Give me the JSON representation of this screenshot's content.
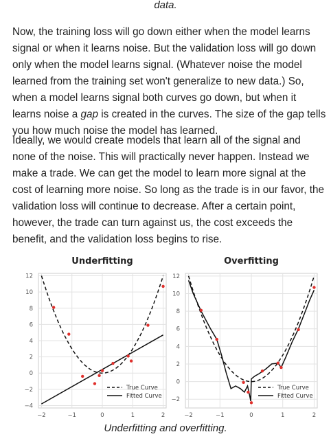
{
  "text": {
    "top_fragment": "data.",
    "paragraph1_a": "Now, the training loss will go down either when the model learns signal or when it learns noise. But the validation loss will go down only when the model learns signal. (Whatever noise the model learned from the training set won't generalize to new data.) So, when a model learns signal both curves go down, but when it learns noise a ",
    "paragraph1_em": "gap",
    "paragraph1_b": " is created in the curves. The size of the gap tells you how much noise the model has learned.",
    "paragraph2": "Ideally, we would create models that learn all of the signal and none of the noise. This will practically never happen. Instead we make a trade. We can get the model to learn more signal at the cost of learning more noise. So long as the trade is in our favor, the validation loss will continue to decrease. After a certain point, however, the trade can turn against us, the cost exceeds the benefit, and the validation loss begins to rise.",
    "caption": "Underfitting and overfitting."
  },
  "chart_data": [
    {
      "type": "line",
      "title": "Underfitting",
      "xlim": [
        -2.1,
        2.1
      ],
      "ylim": [
        -4.3,
        12.3
      ],
      "xticks": [
        -2,
        -1,
        0,
        1,
        2
      ],
      "yticks": [
        -4,
        -2,
        0,
        2,
        4,
        6,
        8,
        10,
        12
      ],
      "grid": true,
      "legend_position": "bottom-right",
      "series": [
        {
          "name": "True Curve",
          "style": "dashed",
          "x": [
            -2.0,
            -1.5,
            -1.0,
            -0.5,
            0.0,
            0.5,
            1.0,
            1.5,
            2.0
          ],
          "y": [
            12.0,
            6.75,
            3.0,
            0.75,
            0.0,
            0.75,
            3.0,
            6.75,
            12.0
          ]
        },
        {
          "name": "Fitted Curve",
          "style": "solid",
          "x": [
            -2.0,
            2.0
          ],
          "y": [
            -3.8,
            4.7
          ]
        }
      ],
      "points": {
        "x": [
          -1.6,
          -1.1,
          -0.65,
          -0.25,
          -0.1,
          0.0,
          0.35,
          0.85,
          0.95,
          1.5,
          2.0
        ],
        "y": [
          8.1,
          4.8,
          -0.4,
          -1.3,
          -0.3,
          0.3,
          1.2,
          2.1,
          1.5,
          5.9,
          10.7
        ]
      }
    },
    {
      "type": "line",
      "title": "Overfitting",
      "xlim": [
        -2.1,
        2.1
      ],
      "ylim": [
        -3.0,
        12.3
      ],
      "xticks": [
        -2,
        -1,
        0,
        1,
        2
      ],
      "yticks": [
        -2,
        0,
        2,
        4,
        6,
        8,
        10,
        12
      ],
      "grid": true,
      "legend_position": "bottom-right",
      "series": [
        {
          "name": "True Curve",
          "style": "dashed",
          "x": [
            -2.0,
            -1.5,
            -1.0,
            -0.5,
            0.0,
            0.5,
            1.0,
            1.5,
            2.0
          ],
          "y": [
            12.0,
            6.75,
            3.0,
            0.75,
            0.0,
            0.75,
            3.0,
            6.75,
            12.0
          ]
        },
        {
          "name": "Fitted Curve",
          "style": "solid",
          "x": [
            -2.0,
            -1.85,
            -1.6,
            -1.3,
            -1.1,
            -0.95,
            -0.8,
            -0.65,
            -0.5,
            -0.35,
            -0.22,
            -0.12,
            -0.06,
            -0.02,
            0.0,
            0.1,
            0.25,
            0.45,
            0.65,
            0.85,
            0.95,
            1.1,
            1.3,
            1.5,
            1.7,
            1.85,
            2.0
          ],
          "y": [
            11.5,
            10.0,
            8.0,
            6.0,
            4.8,
            3.0,
            1.0,
            -0.8,
            -0.5,
            -0.8,
            -1.2,
            -0.5,
            -1.5,
            -2.2,
            0.3,
            0.6,
            0.9,
            1.4,
            2.0,
            2.1,
            1.6,
            2.8,
            4.5,
            6.0,
            7.8,
            9.2,
            10.4
          ]
        }
      ],
      "points": {
        "x": [
          -1.6,
          -1.1,
          -0.25,
          -0.1,
          0.0,
          0.35,
          0.85,
          0.95,
          1.5,
          2.0
        ],
        "y": [
          8.1,
          4.8,
          -0.1,
          -1.2,
          -2.4,
          1.2,
          2.1,
          1.6,
          5.9,
          10.7
        ]
      }
    }
  ]
}
